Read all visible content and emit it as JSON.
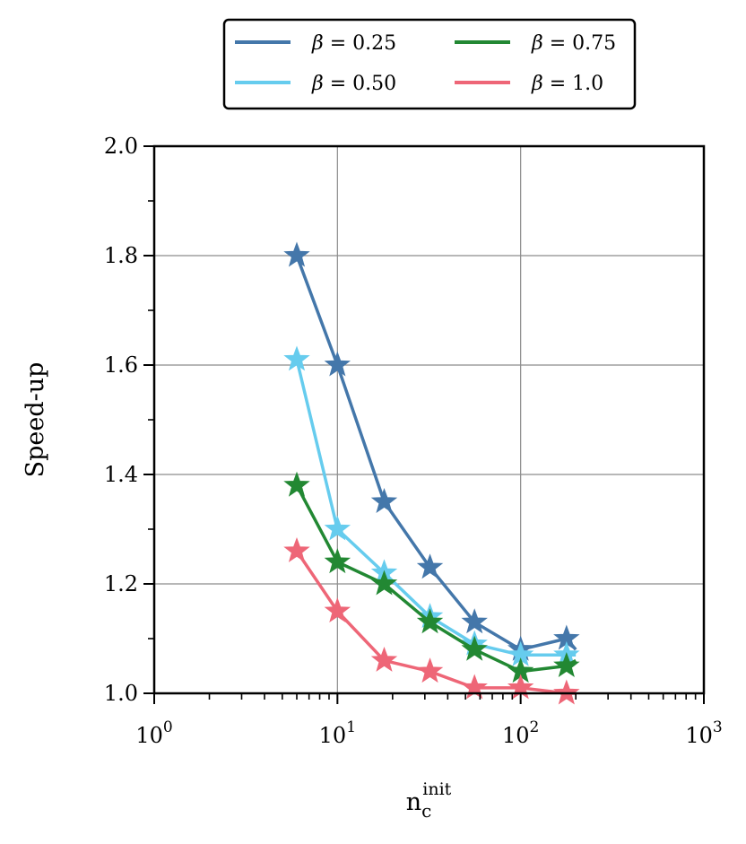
{
  "chart_data": {
    "type": "line",
    "xscale": "log",
    "xlim": [
      1,
      1000
    ],
    "ylim": [
      1.0,
      2.0
    ],
    "grid": true,
    "legend_location": "top-center, above plot, 2 columns",
    "ylabel": "Speed-up",
    "xlabel": {
      "base": "n",
      "sub": "c",
      "sup": "init"
    },
    "x_ticks": [
      {
        "value": 1,
        "base": "10",
        "exp": "0"
      },
      {
        "value": 10,
        "base": "10",
        "exp": "1"
      },
      {
        "value": 100,
        "base": "10",
        "exp": "2"
      },
      {
        "value": 1000,
        "base": "10",
        "exp": "3"
      }
    ],
    "y_ticks": [
      {
        "value": 1.0,
        "label": "1.0"
      },
      {
        "value": 1.2,
        "label": "1.2"
      },
      {
        "value": 1.4,
        "label": "1.4"
      },
      {
        "value": 1.6,
        "label": "1.6"
      },
      {
        "value": 1.8,
        "label": "1.8"
      },
      {
        "value": 2.0,
        "label": "2.0"
      }
    ],
    "marker": "star",
    "series": [
      {
        "name": "β = 0.25",
        "symbol": "β",
        "label": "= 0.25",
        "color": "#4477AA",
        "points": [
          [
            6,
            1.8
          ],
          [
            10,
            1.6
          ],
          [
            18,
            1.35
          ],
          [
            32,
            1.23
          ],
          [
            56,
            1.13
          ],
          [
            100,
            1.08
          ],
          [
            178,
            1.1
          ]
        ],
        "line_end": [
          200,
          1.08
        ]
      },
      {
        "name": "β = 0.50",
        "symbol": "β",
        "label": "= 0.50",
        "color": "#66CCEE",
        "points": [
          [
            6,
            1.61
          ],
          [
            10,
            1.3
          ],
          [
            18,
            1.22
          ],
          [
            32,
            1.14
          ],
          [
            56,
            1.09
          ],
          [
            100,
            1.07
          ],
          [
            178,
            1.07
          ]
        ],
        "line_end": [
          200,
          1.07
        ]
      },
      {
        "name": "β = 0.75",
        "symbol": "β",
        "label": "= 0.75",
        "color": "#228833",
        "points": [
          [
            6,
            1.38
          ],
          [
            10,
            1.24
          ],
          [
            18,
            1.2
          ],
          [
            32,
            1.13
          ],
          [
            56,
            1.08
          ],
          [
            100,
            1.04
          ],
          [
            178,
            1.05
          ]
        ],
        "line_end": [
          200,
          1.06
        ]
      },
      {
        "name": "β = 1.0",
        "symbol": "β",
        "label": "= 1.0",
        "color": "#EE6677",
        "points": [
          [
            6,
            1.26
          ],
          [
            10,
            1.15
          ],
          [
            18,
            1.06
          ],
          [
            32,
            1.04
          ],
          [
            56,
            1.01
          ],
          [
            100,
            1.01
          ],
          [
            178,
            1.0
          ]
        ],
        "line_end": [
          200,
          1.0
        ]
      }
    ]
  }
}
